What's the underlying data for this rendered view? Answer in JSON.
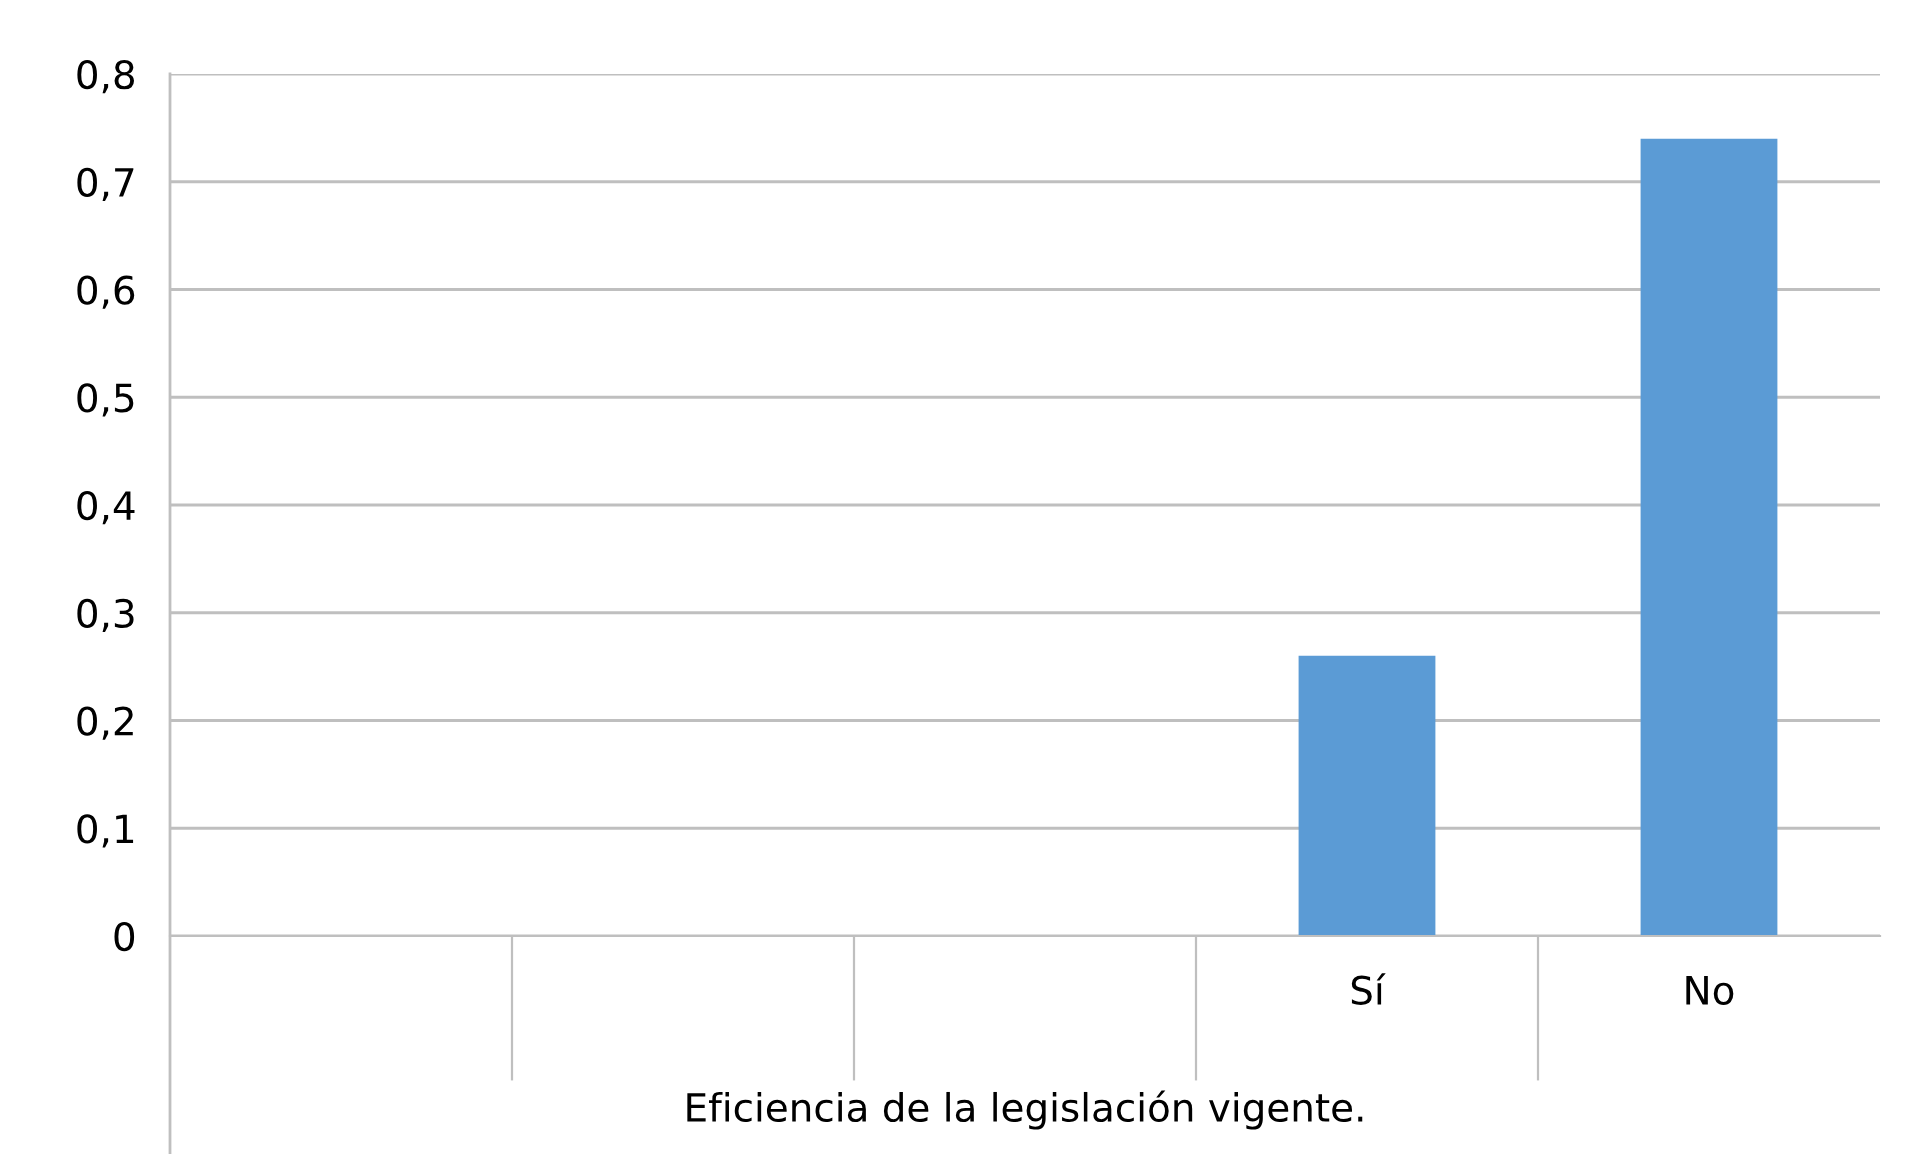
{
  "chart_data": {
    "type": "bar",
    "xlabel": "Eficiencia de la legislación vigente.",
    "categories": [
      null,
      null,
      null,
      "Sí",
      "No"
    ],
    "values": [
      null,
      null,
      null,
      0.26,
      0.74
    ],
    "color": "#5b9bd5",
    "ylim": [
      0,
      0.8
    ],
    "yticks": [
      0,
      {
        "value": 0.1,
        "label": "0,1"
      },
      {
        "value": 0.2,
        "label": "0,2"
      },
      {
        "value": 0.3,
        "label": "0,3"
      },
      {
        "value": 0.4,
        "label": "0,4"
      },
      {
        "value": 0.5,
        "label": "0,5"
      },
      {
        "value": 0.6,
        "label": "0,6"
      },
      {
        "value": 0.7,
        "label": "0,7"
      },
      {
        "value": 0.8,
        "label": "0,8"
      }
    ],
    "grid": "y",
    "legend": false
  }
}
